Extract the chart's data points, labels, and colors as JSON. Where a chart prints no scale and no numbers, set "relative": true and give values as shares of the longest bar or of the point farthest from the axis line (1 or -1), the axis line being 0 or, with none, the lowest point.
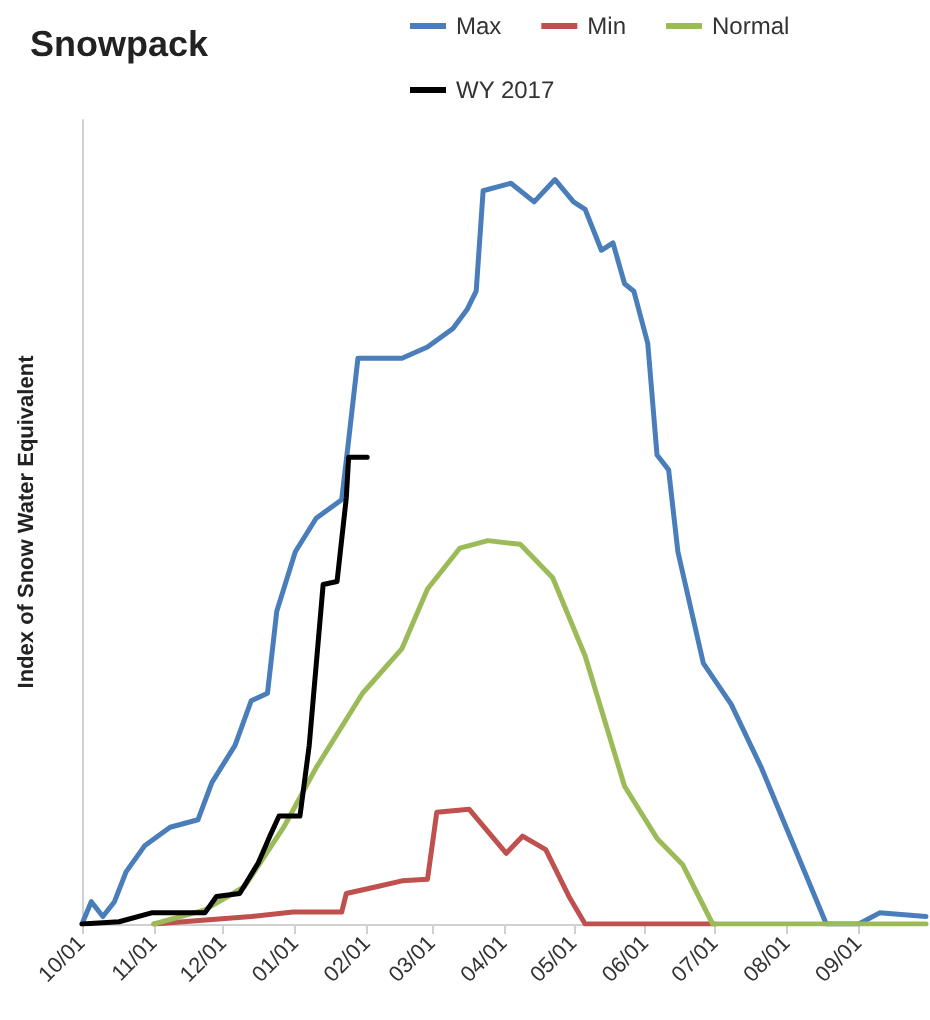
{
  "chart_data": {
    "type": "line",
    "title": "Snowpack",
    "ylabel": "Index of Snow Water Equivalent",
    "relative": true,
    "grid": false,
    "legend": "top",
    "marker": "none",
    "line_style": "solid",
    "xlim": [
      "2016-10-01",
      "2017-09-30"
    ],
    "xticks": [
      {
        "value": "2016-10-01",
        "label": "10/01"
      },
      {
        "value": "2016-11-01",
        "label": "11/01"
      },
      {
        "value": "2016-12-01",
        "label": "12/01"
      },
      {
        "value": "2017-01-01",
        "label": "01/01"
      },
      {
        "value": "2017-02-01",
        "label": "02/01"
      },
      {
        "value": "2017-03-01",
        "label": "03/01"
      },
      {
        "value": "2017-04-01",
        "label": "04/01"
      },
      {
        "value": "2017-05-01",
        "label": "05/01"
      },
      {
        "value": "2017-06-01",
        "label": "06/01"
      },
      {
        "value": "2017-07-01",
        "label": "07/01"
      },
      {
        "value": "2017-08-01",
        "label": "08/01"
      },
      {
        "value": "2017-09-01",
        "label": "09/01"
      }
    ],
    "series": [
      {
        "name": "Max",
        "color": "#4a7ebb",
        "x": [
          "2016-10-01",
          "2016-10-05",
          "2016-10-10",
          "2016-10-15",
          "2016-10-20",
          "2016-10-28",
          "2016-11-08",
          "2016-11-20",
          "2016-11-26",
          "2016-12-06",
          "2016-12-13",
          "2016-12-20",
          "2016-12-24",
          "2017-01-01",
          "2017-01-10",
          "2017-01-21",
          "2017-01-24",
          "2017-01-28",
          "2017-02-16",
          "2017-02-27",
          "2017-03-10",
          "2017-03-16",
          "2017-03-20",
          "2017-03-23",
          "2017-04-04",
          "2017-04-14",
          "2017-04-23",
          "2017-05-01",
          "2017-05-06",
          "2017-05-13",
          "2017-05-18",
          "2017-05-23",
          "2017-05-27",
          "2017-06-02",
          "2017-06-06",
          "2017-06-11",
          "2017-06-15",
          "2017-06-26",
          "2017-07-08",
          "2017-07-21",
          "2017-08-18",
          "2017-09-01",
          "2017-09-10",
          "2017-09-30"
        ],
        "values": [
          0,
          0.03,
          0.01,
          0.03,
          0.07,
          0.105,
          0.13,
          0.14,
          0.19,
          0.24,
          0.3,
          0.31,
          0.42,
          0.5,
          0.545,
          0.57,
          0.65,
          0.76,
          0.76,
          0.775,
          0.8,
          0.825,
          0.85,
          0.985,
          0.995,
          0.97,
          1,
          0.97,
          0.96,
          0.905,
          0.915,
          0.86,
          0.85,
          0.78,
          0.63,
          0.61,
          0.5,
          0.35,
          0.295,
          0.21,
          0,
          0,
          0.015,
          0.01
        ]
      },
      {
        "name": "Min",
        "color": "#c0504d",
        "x": [
          "2016-11-01",
          "2016-12-13",
          "2016-12-31",
          "2017-01-21",
          "2017-01-23",
          "2017-02-05",
          "2017-02-16",
          "2017-02-27",
          "2017-03-03",
          "2017-03-17",
          "2017-04-02",
          "2017-04-09",
          "2017-04-19",
          "2017-04-29",
          "2017-05-06",
          "2017-05-31",
          "2017-07-01"
        ],
        "values": [
          0,
          0.01,
          0.016,
          0.016,
          0.041,
          0.05,
          0.058,
          0.06,
          0.15,
          0.154,
          0.095,
          0.118,
          0.1,
          0.037,
          0,
          0,
          0
        ]
      },
      {
        "name": "Normal",
        "color": "#9bbb59",
        "x": [
          "2016-11-01",
          "2016-11-23",
          "2016-12-10",
          "2016-12-27",
          "2017-01-10",
          "2017-01-30",
          "2017-02-16",
          "2017-02-27",
          "2017-03-13",
          "2017-03-25",
          "2017-04-08",
          "2017-04-22",
          "2017-05-06",
          "2017-05-23",
          "2017-06-06",
          "2017-06-17",
          "2017-06-30",
          "2017-09-30"
        ],
        "values": [
          0,
          0.019,
          0.05,
          0.13,
          0.21,
          0.31,
          0.37,
          0.45,
          0.505,
          0.515,
          0.51,
          0.465,
          0.36,
          0.185,
          0.115,
          0.08,
          0,
          0
        ]
      },
      {
        "name": "WY 2017",
        "color": "#000000",
        "x": [
          "2016-10-01",
          "2016-10-17",
          "2016-10-31",
          "2016-11-23",
          "2016-11-28",
          "2016-12-08",
          "2016-12-16",
          "2016-12-21",
          "2016-12-25",
          "2017-01-03",
          "2017-01-07",
          "2017-01-13",
          "2017-01-19",
          "2017-01-23",
          "2017-01-24",
          "2017-02-01"
        ],
        "values": [
          0,
          0.003,
          0.015,
          0.015,
          0.037,
          0.041,
          0.082,
          0.118,
          0.145,
          0.145,
          0.24,
          0.456,
          0.46,
          0.573,
          0.627,
          0.627
        ]
      }
    ]
  }
}
